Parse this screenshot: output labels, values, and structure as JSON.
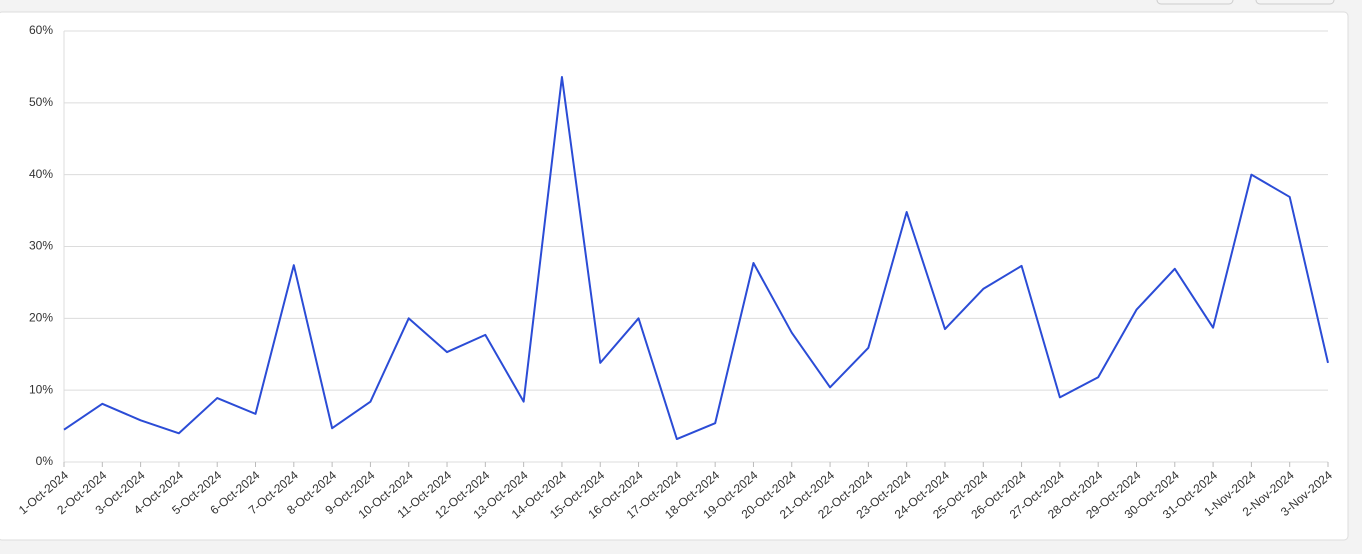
{
  "chart_data": {
    "type": "line",
    "x": [
      "1-Oct-2024",
      "2-Oct-2024",
      "3-Oct-2024",
      "4-Oct-2024",
      "5-Oct-2024",
      "6-Oct-2024",
      "7-Oct-2024",
      "8-Oct-2024",
      "9-Oct-2024",
      "10-Oct-2024",
      "11-Oct-2024",
      "12-Oct-2024",
      "13-Oct-2024",
      "14-Oct-2024",
      "15-Oct-2024",
      "16-Oct-2024",
      "17-Oct-2024",
      "18-Oct-2024",
      "19-Oct-2024",
      "20-Oct-2024",
      "21-Oct-2024",
      "22-Oct-2024",
      "23-Oct-2024",
      "24-Oct-2024",
      "25-Oct-2024",
      "26-Oct-2024",
      "27-Oct-2024",
      "28-Oct-2024",
      "29-Oct-2024",
      "30-Oct-2024",
      "31-Oct-2024",
      "1-Nov-2024",
      "2-Nov-2024",
      "3-Nov-2024"
    ],
    "values": [
      4.5,
      8.1,
      5.8,
      4.0,
      8.9,
      6.7,
      27.4,
      4.7,
      8.4,
      20.0,
      15.3,
      17.7,
      8.4,
      53.6,
      13.8,
      20.0,
      3.2,
      5.4,
      27.7,
      18.0,
      10.4,
      15.9,
      34.8,
      18.5,
      24.1,
      27.3,
      9.0,
      11.8,
      21.2,
      26.9,
      18.7,
      40.0,
      36.9,
      13.8
    ],
    "color": "#2b4cd6",
    "ylim": [
      0,
      60
    ],
    "yticks": [
      {
        "value": 0,
        "label": "0%"
      },
      {
        "value": 10,
        "label": "10%"
      },
      {
        "value": 20,
        "label": "20%"
      },
      {
        "value": 30,
        "label": "30%"
      },
      {
        "value": 40,
        "label": "40%"
      },
      {
        "value": 50,
        "label": "50%"
      },
      {
        "value": 60,
        "label": "60%"
      }
    ],
    "grid": true
  }
}
